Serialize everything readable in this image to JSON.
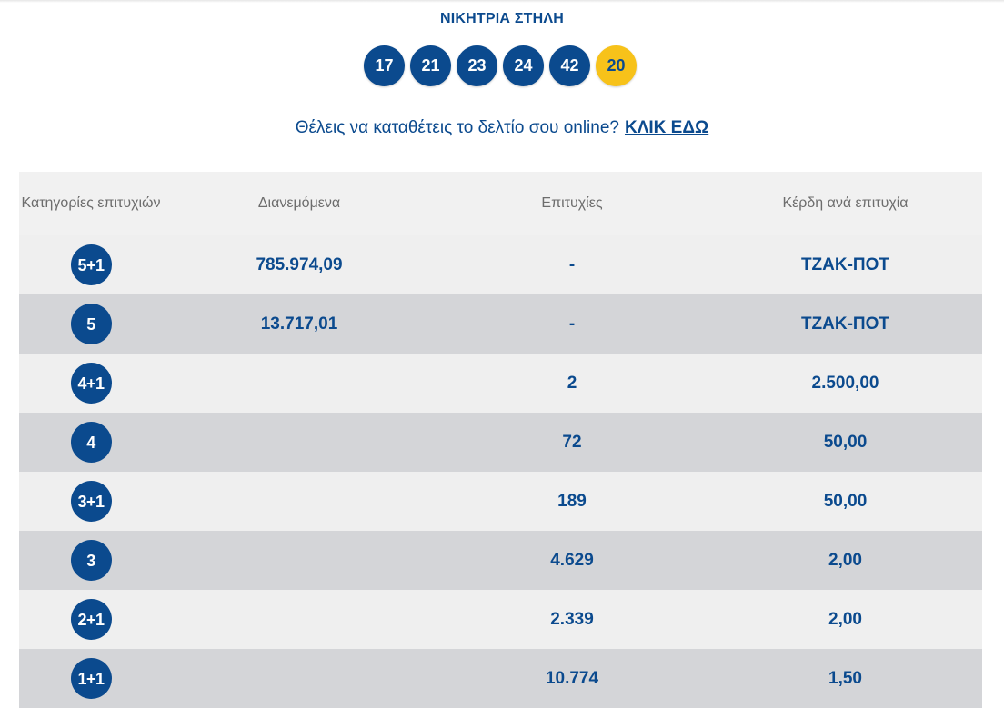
{
  "header": {
    "title": "ΝΙΚΗΤΡΙΑ ΣΤΗΛΗ",
    "winning_numbers": [
      "17",
      "21",
      "23",
      "24",
      "42"
    ],
    "bonus_number": "20"
  },
  "cta": {
    "text": "Θέλεις να καταθέτεις το δελτίο σου online?",
    "link_label": "ΚΛΙΚ ΕΔΩ"
  },
  "table": {
    "columns": [
      "Κατηγορίες επιτυχιών",
      "Διανεμόμενα",
      "Επιτυχίες",
      "Κέρδη ανά επιτυχία"
    ],
    "rows": [
      {
        "category": "5+1",
        "distributed": "785.974,09",
        "winners": "-",
        "prize": "ΤΖΑΚ-ΠΟΤ"
      },
      {
        "category": "5",
        "distributed": "13.717,01",
        "winners": "-",
        "prize": "ΤΖΑΚ-ΠΟΤ"
      },
      {
        "category": "4+1",
        "distributed": "",
        "winners": "2",
        "prize": "2.500,00"
      },
      {
        "category": "4",
        "distributed": "",
        "winners": "72",
        "prize": "50,00"
      },
      {
        "category": "3+1",
        "distributed": "",
        "winners": "189",
        "prize": "50,00"
      },
      {
        "category": "3",
        "distributed": "",
        "winners": "4.629",
        "prize": "2,00"
      },
      {
        "category": "2+1",
        "distributed": "",
        "winners": "2.339",
        "prize": "2,00"
      },
      {
        "category": "1+1",
        "distributed": "",
        "winners": "10.774",
        "prize": "1,50"
      }
    ]
  },
  "colors": {
    "primary_blue": "#0b4a8e",
    "bonus_yellow": "#f7c21a",
    "row_light": "#efefef",
    "row_dark": "#d4d5d8",
    "header_bg": "#f1f1f1"
  }
}
